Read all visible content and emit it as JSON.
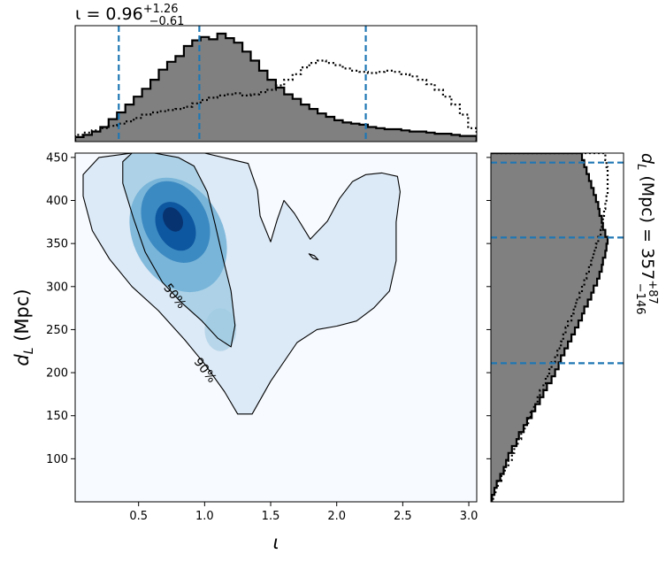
{
  "chart_data": [
    {
      "type": "histogram",
      "panel": "top-marginal",
      "title_prefix": "ι = 0.96",
      "title_sup": "+1.26",
      "title_sub": "−0.61",
      "xlim": [
        0.02,
        3.06
      ],
      "bin_start": 0.02,
      "bin_width": 0.0633,
      "series": [
        {
          "style": "filled gray, black step outline",
          "values": [
            0.04,
            0.06,
            0.09,
            0.13,
            0.2,
            0.26,
            0.33,
            0.4,
            0.47,
            0.55,
            0.64,
            0.71,
            0.76,
            0.85,
            0.9,
            0.93,
            0.91,
            0.96,
            0.92,
            0.88,
            0.8,
            0.72,
            0.63,
            0.55,
            0.48,
            0.42,
            0.38,
            0.33,
            0.29,
            0.25,
            0.22,
            0.19,
            0.17,
            0.16,
            0.15,
            0.13,
            0.12,
            0.11,
            0.11,
            0.1,
            0.09,
            0.09,
            0.08,
            0.07,
            0.07,
            0.06,
            0.05,
            0.05
          ]
        },
        {
          "style": "dotted black step",
          "values": [
            0.06,
            0.08,
            0.1,
            0.12,
            0.14,
            0.16,
            0.18,
            0.21,
            0.24,
            0.26,
            0.27,
            0.28,
            0.29,
            0.31,
            0.34,
            0.37,
            0.39,
            0.41,
            0.42,
            0.43,
            0.41,
            0.42,
            0.44,
            0.46,
            0.5,
            0.55,
            0.6,
            0.66,
            0.7,
            0.72,
            0.7,
            0.68,
            0.65,
            0.63,
            0.62,
            0.61,
            0.62,
            0.63,
            0.62,
            0.6,
            0.58,
            0.55,
            0.51,
            0.46,
            0.4,
            0.33,
            0.24,
            0.12
          ]
        }
      ],
      "vlines": [
        0.35,
        0.96,
        2.22
      ],
      "vline_color": "#1f77b4"
    },
    {
      "type": "heatmap",
      "panel": "joint",
      "xlabel": "ι",
      "ylabel": "d",
      "ylabel_sub": "L",
      "ylabel_unit": " (Mpc)",
      "xlim": [
        0.02,
        3.06
      ],
      "ylim": [
        50,
        455
      ],
      "xticks": [
        0.5,
        1.0,
        1.5,
        2.0,
        2.5,
        3.0
      ],
      "xtick_labels": [
        "0.5",
        "1.0",
        "1.5",
        "2.0",
        "2.5",
        "3.0"
      ],
      "yticks": [
        100,
        150,
        200,
        250,
        300,
        350,
        400,
        450
      ],
      "ytick_labels": [
        "100",
        "150",
        "200",
        "250",
        "300",
        "350",
        "400",
        "450"
      ],
      "colormap": "Blues",
      "density_peak": [
        0.78,
        370
      ],
      "contours": [
        {
          "label": "50%",
          "label_at": [
            0.75,
            286
          ],
          "points": [
            [
              0.38,
              445
            ],
            [
              0.45,
              455
            ],
            [
              0.62,
              455
            ],
            [
              0.8,
              450
            ],
            [
              0.92,
              440
            ],
            [
              1.02,
              410
            ],
            [
              1.08,
              372
            ],
            [
              1.14,
              332
            ],
            [
              1.2,
              295
            ],
            [
              1.23,
              255
            ],
            [
              1.2,
              230
            ],
            [
              1.1,
              240
            ],
            [
              0.98,
              260
            ],
            [
              0.82,
              282
            ],
            [
              0.68,
              305
            ],
            [
              0.55,
              340
            ],
            [
              0.46,
              380
            ],
            [
              0.38,
              420
            ]
          ]
        },
        {
          "label": "90%",
          "label_at": [
            0.98,
            200
          ],
          "points": [
            [
              0.08,
              430
            ],
            [
              0.08,
              405
            ],
            [
              0.15,
              365
            ],
            [
              0.28,
              332
            ],
            [
              0.45,
              300
            ],
            [
              0.65,
              272
            ],
            [
              0.85,
              238
            ],
            [
              1.0,
              210
            ],
            [
              1.15,
              178
            ],
            [
              1.25,
              152
            ],
            [
              1.36,
              152
            ],
            [
              1.5,
              190
            ],
            [
              1.7,
              235
            ],
            [
              1.85,
              250
            ],
            [
              2.0,
              254
            ],
            [
              2.15,
              260
            ],
            [
              2.28,
              275
            ],
            [
              2.4,
              295
            ],
            [
              2.45,
              330
            ],
            [
              2.45,
              375
            ],
            [
              2.48,
              410
            ],
            [
              2.46,
              428
            ],
            [
              2.34,
              432
            ],
            [
              2.22,
              430
            ],
            [
              2.12,
              422
            ],
            [
              2.02,
              402
            ],
            [
              1.93,
              376
            ],
            [
              1.8,
              355
            ],
            [
              1.68,
              385
            ],
            [
              1.6,
              400
            ],
            [
              1.55,
              378
            ],
            [
              1.5,
              352
            ],
            [
              1.42,
              382
            ],
            [
              1.4,
              412
            ],
            [
              1.33,
              443
            ],
            [
              1.0,
              455
            ],
            [
              0.45,
              455
            ],
            [
              0.2,
              450
            ]
          ]
        },
        {
          "label": "",
          "label_at": null,
          "points": [
            [
              1.79,
              338
            ],
            [
              1.82,
              333
            ],
            [
              1.86,
              331
            ],
            [
              1.83,
              336
            ]
          ]
        }
      ]
    },
    {
      "type": "histogram",
      "panel": "right-marginal",
      "orientation": "horizontal",
      "title_prefix": "d",
      "title_prefix_sub": "L",
      "title_mid": " (Mpc) = 357",
      "title_sup": "+87",
      "title_sub": "−146",
      "ylim": [
        50,
        455
      ],
      "bin_start": 50,
      "bin_width": 8.1,
      "series": [
        {
          "style": "filled gray, black step outline",
          "values": [
            0.01,
            0.03,
            0.05,
            0.08,
            0.11,
            0.13,
            0.15,
            0.18,
            0.22,
            0.24,
            0.28,
            0.31,
            0.35,
            0.38,
            0.42,
            0.45,
            0.48,
            0.52,
            0.55,
            0.58,
            0.6,
            0.63,
            0.66,
            0.69,
            0.72,
            0.75,
            0.78,
            0.8,
            0.83,
            0.86,
            0.88,
            0.91,
            0.93,
            0.95,
            0.96,
            0.98,
            0.99,
            1.0,
            0.98,
            0.96,
            0.95,
            0.93,
            0.92,
            0.9,
            0.88,
            0.86,
            0.84,
            0.82,
            0.8,
            0.78
          ]
        },
        {
          "style": "dotted black step",
          "values": [
            0.02,
            0.04,
            0.06,
            0.09,
            0.12,
            0.15,
            0.18,
            0.2,
            0.23,
            0.26,
            0.29,
            0.32,
            0.34,
            0.37,
            0.4,
            0.42,
            0.45,
            0.47,
            0.5,
            0.52,
            0.55,
            0.57,
            0.6,
            0.62,
            0.64,
            0.66,
            0.69,
            0.71,
            0.73,
            0.76,
            0.78,
            0.8,
            0.82,
            0.84,
            0.86,
            0.88,
            0.9,
            0.92,
            0.94,
            0.95,
            0.96,
            0.97,
            0.98,
            0.99,
            1.0,
            1.0,
            1.0,
            1.0,
            0.99,
            0.98
          ]
        }
      ],
      "hlines": [
        211,
        357,
        444
      ],
      "hline_color": "#1f77b4"
    }
  ]
}
